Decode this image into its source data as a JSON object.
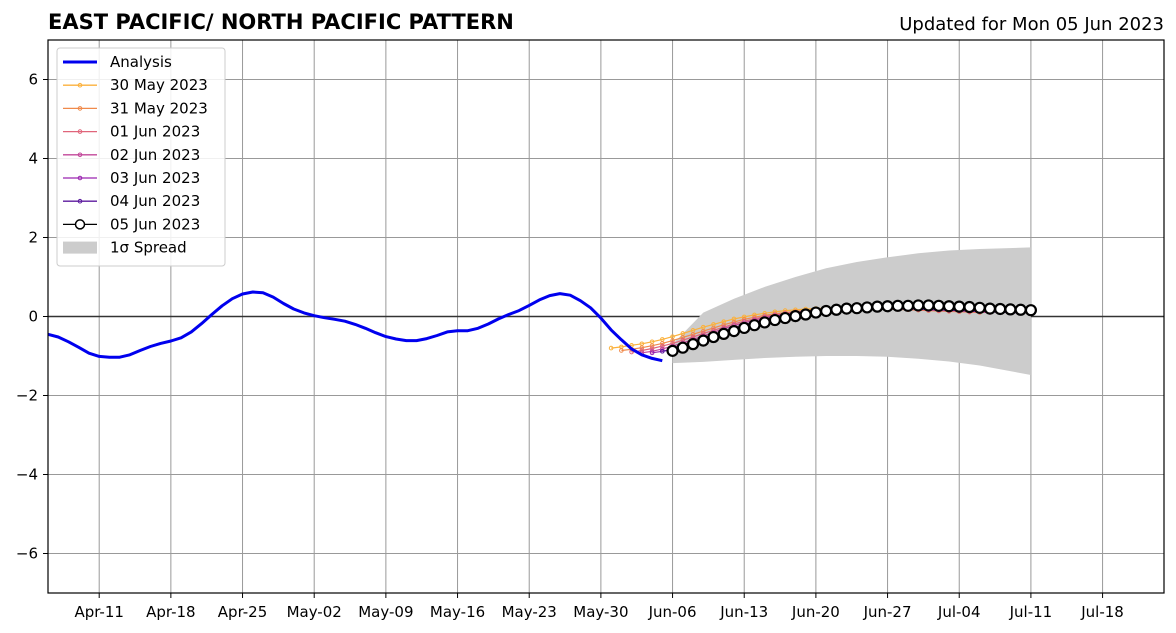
{
  "chart_data": {
    "type": "line",
    "title": "EAST PACIFIC/ NORTH PACIFIC PATTERN",
    "subtitle": "Updated for Mon 05 Jun 2023",
    "xlabel": "",
    "ylabel": "",
    "x_tick_labels": [
      "Apr-11",
      "Apr-18",
      "Apr-25",
      "May-02",
      "May-09",
      "May-16",
      "May-23",
      "May-30",
      "Jun-06",
      "Jun-13",
      "Jun-20",
      "Jun-27",
      "Jul-04",
      "Jul-11",
      "Jul-18"
    ],
    "y_ticks": [
      -6,
      -4,
      -2,
      0,
      2,
      4,
      6
    ],
    "y_tick_labels": [
      "−6",
      "−4",
      "−2",
      "0",
      "2",
      "4",
      "6"
    ],
    "ylim": [
      -7,
      7
    ],
    "xlim": [
      "2023-04-06",
      "2023-07-24"
    ],
    "grid": true,
    "zero_line": true,
    "legend_position": "upper-left",
    "colors": {
      "analysis": "#0000ee",
      "may30": "#fbb13c",
      "may31": "#f08a4b",
      "jun01": "#e0657a",
      "jun02": "#c2479a",
      "jun03": "#9a25b0",
      "jun04": "#5b1a9e",
      "jun05": "#000000",
      "spread": "#cccccc",
      "grid": "#999999"
    },
    "analysis": {
      "name": "Analysis",
      "x": [
        "2023-04-06",
        "2023-04-07",
        "2023-04-08",
        "2023-04-09",
        "2023-04-10",
        "2023-04-11",
        "2023-04-12",
        "2023-04-13",
        "2023-04-14",
        "2023-04-15",
        "2023-04-16",
        "2023-04-17",
        "2023-04-18",
        "2023-04-19",
        "2023-04-20",
        "2023-04-21",
        "2023-04-22",
        "2023-04-23",
        "2023-04-24",
        "2023-04-25",
        "2023-04-26",
        "2023-04-27",
        "2023-04-28",
        "2023-04-29",
        "2023-04-30",
        "2023-05-01",
        "2023-05-02",
        "2023-05-03",
        "2023-05-04",
        "2023-05-05",
        "2023-05-06",
        "2023-05-07",
        "2023-05-08",
        "2023-05-09",
        "2023-05-10",
        "2023-05-11",
        "2023-05-12",
        "2023-05-13",
        "2023-05-14",
        "2023-05-15",
        "2023-05-16",
        "2023-05-17",
        "2023-05-18",
        "2023-05-19",
        "2023-05-20",
        "2023-05-21",
        "2023-05-22",
        "2023-05-23",
        "2023-05-24",
        "2023-05-25",
        "2023-05-26",
        "2023-05-27",
        "2023-05-28",
        "2023-05-29",
        "2023-05-30",
        "2023-05-31",
        "2023-06-01",
        "2023-06-02",
        "2023-06-03",
        "2023-06-04",
        "2023-06-05"
      ],
      "y": [
        -0.45,
        -0.52,
        -0.64,
        -0.78,
        -0.93,
        -1.01,
        -1.03,
        -1.03,
        -0.97,
        -0.86,
        -0.76,
        -0.68,
        -0.62,
        -0.54,
        -0.39,
        -0.18,
        0.05,
        0.27,
        0.45,
        0.57,
        0.62,
        0.6,
        0.49,
        0.33,
        0.19,
        0.09,
        0.02,
        -0.03,
        -0.07,
        -0.12,
        -0.2,
        -0.3,
        -0.41,
        -0.51,
        -0.57,
        -0.61,
        -0.61,
        -0.56,
        -0.48,
        -0.39,
        -0.36,
        -0.36,
        -0.3,
        -0.19,
        -0.06,
        0.05,
        0.15,
        0.28,
        0.42,
        0.53,
        0.58,
        0.54,
        0.4,
        0.22,
        -0.04,
        -0.34,
        -0.59,
        -0.82,
        -0.97,
        -1.06,
        -1.12
      ]
    },
    "series": [
      {
        "name": "30 May 2023",
        "key": "may30",
        "x": [
          "2023-05-31",
          "2023-06-01",
          "2023-06-02",
          "2023-06-03",
          "2023-06-04",
          "2023-06-05",
          "2023-06-06",
          "2023-06-07",
          "2023-06-08",
          "2023-06-09",
          "2023-06-10",
          "2023-06-11",
          "2023-06-12",
          "2023-06-13",
          "2023-06-14",
          "2023-06-15",
          "2023-06-16",
          "2023-06-17",
          "2023-06-18",
          "2023-06-19",
          "2023-06-20",
          "2023-06-21",
          "2023-06-22",
          "2023-06-23",
          "2023-06-24",
          "2023-06-25",
          "2023-06-26",
          "2023-06-27",
          "2023-06-28",
          "2023-06-29",
          "2023-06-30",
          "2023-07-01",
          "2023-07-02",
          "2023-07-03",
          "2023-07-04",
          "2023-07-05"
        ],
        "y": [
          -0.8,
          -0.77,
          -0.73,
          -0.69,
          -0.64,
          -0.58,
          -0.51,
          -0.43,
          -0.35,
          -0.27,
          -0.2,
          -0.13,
          -0.06,
          -0.01,
          0.04,
          0.08,
          0.12,
          0.15,
          0.17,
          0.19,
          0.2,
          0.21,
          0.21,
          0.21,
          0.21,
          0.21,
          0.2,
          0.2,
          0.19,
          0.18,
          0.17,
          0.16,
          0.15,
          0.14,
          0.13,
          0.12
        ]
      },
      {
        "name": "31 May 2023",
        "key": "may31",
        "x": [
          "2023-06-01",
          "2023-06-02",
          "2023-06-03",
          "2023-06-04",
          "2023-06-05",
          "2023-06-06",
          "2023-06-07",
          "2023-06-08",
          "2023-06-09",
          "2023-06-10",
          "2023-06-11",
          "2023-06-12",
          "2023-06-13",
          "2023-06-14",
          "2023-06-15",
          "2023-06-16",
          "2023-06-17",
          "2023-06-18",
          "2023-06-19",
          "2023-06-20",
          "2023-06-21",
          "2023-06-22",
          "2023-06-23",
          "2023-06-24",
          "2023-06-25",
          "2023-06-26",
          "2023-06-27",
          "2023-06-28",
          "2023-06-29",
          "2023-06-30",
          "2023-07-01",
          "2023-07-02",
          "2023-07-03",
          "2023-07-04",
          "2023-07-05",
          "2023-07-06"
        ],
        "y": [
          -0.86,
          -0.83,
          -0.79,
          -0.74,
          -0.68,
          -0.61,
          -0.53,
          -0.45,
          -0.37,
          -0.29,
          -0.21,
          -0.14,
          -0.07,
          -0.02,
          0.03,
          0.07,
          0.1,
          0.13,
          0.15,
          0.17,
          0.18,
          0.19,
          0.19,
          0.19,
          0.19,
          0.19,
          0.18,
          0.18,
          0.17,
          0.16,
          0.15,
          0.14,
          0.13,
          0.12,
          0.11,
          0.1
        ]
      },
      {
        "name": "01 Jun 2023",
        "key": "jun01",
        "x": [
          "2023-06-02",
          "2023-06-03",
          "2023-06-04",
          "2023-06-05",
          "2023-06-06",
          "2023-06-07",
          "2023-06-08",
          "2023-06-09",
          "2023-06-10",
          "2023-06-11",
          "2023-06-12",
          "2023-06-13",
          "2023-06-14",
          "2023-06-15",
          "2023-06-16",
          "2023-06-17",
          "2023-06-18",
          "2023-06-19",
          "2023-06-20",
          "2023-06-21",
          "2023-06-22",
          "2023-06-23",
          "2023-06-24",
          "2023-06-25",
          "2023-06-26",
          "2023-06-27",
          "2023-06-28",
          "2023-06-29",
          "2023-06-30",
          "2023-07-01",
          "2023-07-02",
          "2023-07-03",
          "2023-07-04",
          "2023-07-05",
          "2023-07-06",
          "2023-07-07"
        ],
        "y": [
          -0.9,
          -0.86,
          -0.81,
          -0.75,
          -0.68,
          -0.6,
          -0.52,
          -0.43,
          -0.35,
          -0.27,
          -0.19,
          -0.12,
          -0.06,
          0.0,
          0.04,
          0.08,
          0.11,
          0.14,
          0.16,
          0.17,
          0.18,
          0.19,
          0.19,
          0.19,
          0.19,
          0.19,
          0.18,
          0.18,
          0.17,
          0.16,
          0.15,
          0.14,
          0.13,
          0.12,
          0.11,
          0.1
        ]
      },
      {
        "name": "02 Jun 2023",
        "key": "jun02",
        "x": [
          "2023-06-03",
          "2023-06-04",
          "2023-06-05",
          "2023-06-06",
          "2023-06-07",
          "2023-06-08",
          "2023-06-09",
          "2023-06-10",
          "2023-06-11",
          "2023-06-12",
          "2023-06-13",
          "2023-06-14",
          "2023-06-15",
          "2023-06-16",
          "2023-06-17",
          "2023-06-18",
          "2023-06-19",
          "2023-06-20",
          "2023-06-21",
          "2023-06-22",
          "2023-06-23",
          "2023-06-24",
          "2023-06-25",
          "2023-06-26",
          "2023-06-27",
          "2023-06-28",
          "2023-06-29",
          "2023-06-30",
          "2023-07-01",
          "2023-07-02",
          "2023-07-03",
          "2023-07-04",
          "2023-07-05",
          "2023-07-06",
          "2023-07-07",
          "2023-07-08"
        ],
        "y": [
          -0.92,
          -0.88,
          -0.82,
          -0.75,
          -0.67,
          -0.58,
          -0.49,
          -0.4,
          -0.31,
          -0.23,
          -0.16,
          -0.09,
          -0.03,
          0.02,
          0.06,
          0.1,
          0.13,
          0.15,
          0.17,
          0.18,
          0.19,
          0.2,
          0.2,
          0.2,
          0.2,
          0.2,
          0.19,
          0.19,
          0.18,
          0.17,
          0.16,
          0.15,
          0.14,
          0.13,
          0.12,
          0.11
        ]
      },
      {
        "name": "03 Jun 2023",
        "key": "jun03",
        "x": [
          "2023-06-04",
          "2023-06-05",
          "2023-06-06",
          "2023-06-07",
          "2023-06-08",
          "2023-06-09",
          "2023-06-10",
          "2023-06-11",
          "2023-06-12",
          "2023-06-13",
          "2023-06-14",
          "2023-06-15",
          "2023-06-16",
          "2023-06-17",
          "2023-06-18",
          "2023-06-19",
          "2023-06-20",
          "2023-06-21",
          "2023-06-22",
          "2023-06-23",
          "2023-06-24",
          "2023-06-25",
          "2023-06-26",
          "2023-06-27",
          "2023-06-28",
          "2023-06-29",
          "2023-06-30",
          "2023-07-01",
          "2023-07-02",
          "2023-07-03",
          "2023-07-04",
          "2023-07-05",
          "2023-07-06",
          "2023-07-07",
          "2023-07-08",
          "2023-07-09"
        ],
        "y": [
          -0.92,
          -0.88,
          -0.82,
          -0.74,
          -0.65,
          -0.56,
          -0.47,
          -0.38,
          -0.29,
          -0.21,
          -0.14,
          -0.07,
          -0.01,
          0.04,
          0.08,
          0.11,
          0.14,
          0.16,
          0.18,
          0.19,
          0.2,
          0.2,
          0.2,
          0.2,
          0.2,
          0.2,
          0.19,
          0.18,
          0.17,
          0.16,
          0.15,
          0.14,
          0.13,
          0.12,
          0.11,
          0.1
        ]
      },
      {
        "name": "04 Jun 2023",
        "key": "jun04",
        "x": [
          "2023-06-05",
          "2023-06-06",
          "2023-06-07",
          "2023-06-08",
          "2023-06-09",
          "2023-06-10",
          "2023-06-11",
          "2023-06-12",
          "2023-06-13",
          "2023-06-14",
          "2023-06-15",
          "2023-06-16",
          "2023-06-17",
          "2023-06-18",
          "2023-06-19",
          "2023-06-20",
          "2023-06-21",
          "2023-06-22",
          "2023-06-23",
          "2023-06-24",
          "2023-06-25",
          "2023-06-26",
          "2023-06-27",
          "2023-06-28",
          "2023-06-29",
          "2023-06-30",
          "2023-07-01",
          "2023-07-02",
          "2023-07-03",
          "2023-07-04",
          "2023-07-05",
          "2023-07-06",
          "2023-07-07",
          "2023-07-08",
          "2023-07-09",
          "2023-07-10"
        ],
        "y": [
          -0.88,
          -0.84,
          -0.78,
          -0.7,
          -0.61,
          -0.52,
          -0.43,
          -0.34,
          -0.26,
          -0.18,
          -0.11,
          -0.05,
          0.01,
          0.05,
          0.09,
          0.12,
          0.15,
          0.17,
          0.18,
          0.19,
          0.2,
          0.2,
          0.2,
          0.2,
          0.2,
          0.19,
          0.18,
          0.17,
          0.16,
          0.15,
          0.14,
          0.13,
          0.12,
          0.11,
          0.1,
          0.09
        ]
      },
      {
        "name": "05 Jun 2023",
        "key": "jun05",
        "x": [
          "2023-06-06",
          "2023-06-07",
          "2023-06-08",
          "2023-06-09",
          "2023-06-10",
          "2023-06-11",
          "2023-06-12",
          "2023-06-13",
          "2023-06-14",
          "2023-06-15",
          "2023-06-16",
          "2023-06-17",
          "2023-06-18",
          "2023-06-19",
          "2023-06-20",
          "2023-06-21",
          "2023-06-22",
          "2023-06-23",
          "2023-06-24",
          "2023-06-25",
          "2023-06-26",
          "2023-06-27",
          "2023-06-28",
          "2023-06-29",
          "2023-06-30",
          "2023-07-01",
          "2023-07-02",
          "2023-07-03",
          "2023-07-04",
          "2023-07-05",
          "2023-07-06",
          "2023-07-07",
          "2023-07-08",
          "2023-07-09",
          "2023-07-10",
          "2023-07-11"
        ],
        "y": [
          -0.87,
          -0.79,
          -0.7,
          -0.61,
          -0.52,
          -0.44,
          -0.37,
          -0.29,
          -0.22,
          -0.15,
          -0.09,
          -0.04,
          0.01,
          0.05,
          0.1,
          0.14,
          0.17,
          0.2,
          0.21,
          0.23,
          0.25,
          0.26,
          0.27,
          0.27,
          0.28,
          0.28,
          0.27,
          0.26,
          0.25,
          0.24,
          0.22,
          0.2,
          0.19,
          0.18,
          0.17,
          0.16
        ]
      }
    ],
    "spread": {
      "name": "1σ Spread",
      "x": [
        "2023-06-06",
        "2023-06-09",
        "2023-06-12",
        "2023-06-15",
        "2023-06-18",
        "2023-06-21",
        "2023-06-24",
        "2023-06-27",
        "2023-06-30",
        "2023-07-03",
        "2023-07-06",
        "2023-07-11"
      ],
      "upper": [
        -0.7,
        0.1,
        0.45,
        0.75,
        1.0,
        1.22,
        1.38,
        1.5,
        1.6,
        1.67,
        1.71,
        1.75
      ],
      "lower": [
        -1.18,
        -1.15,
        -1.1,
        -1.05,
        -1.02,
        -1.0,
        -1.0,
        -1.02,
        -1.07,
        -1.14,
        -1.24,
        -1.48
      ]
    },
    "legend": [
      {
        "label": "Analysis",
        "key": "analysis",
        "style": "thick-line"
      },
      {
        "label": "30 May 2023",
        "key": "may30",
        "style": "dot-line"
      },
      {
        "label": "31 May 2023",
        "key": "may31",
        "style": "dot-line"
      },
      {
        "label": "01 Jun 2023",
        "key": "jun01",
        "style": "dot-line"
      },
      {
        "label": "02 Jun 2023",
        "key": "jun02",
        "style": "dot-line"
      },
      {
        "label": "03 Jun 2023",
        "key": "jun03",
        "style": "dot-line"
      },
      {
        "label": "04 Jun 2023",
        "key": "jun04",
        "style": "dot-line"
      },
      {
        "label": "05 Jun 2023",
        "key": "jun05",
        "style": "open-circle-line"
      },
      {
        "label": "1σ Spread",
        "key": "spread",
        "style": "patch"
      }
    ]
  }
}
